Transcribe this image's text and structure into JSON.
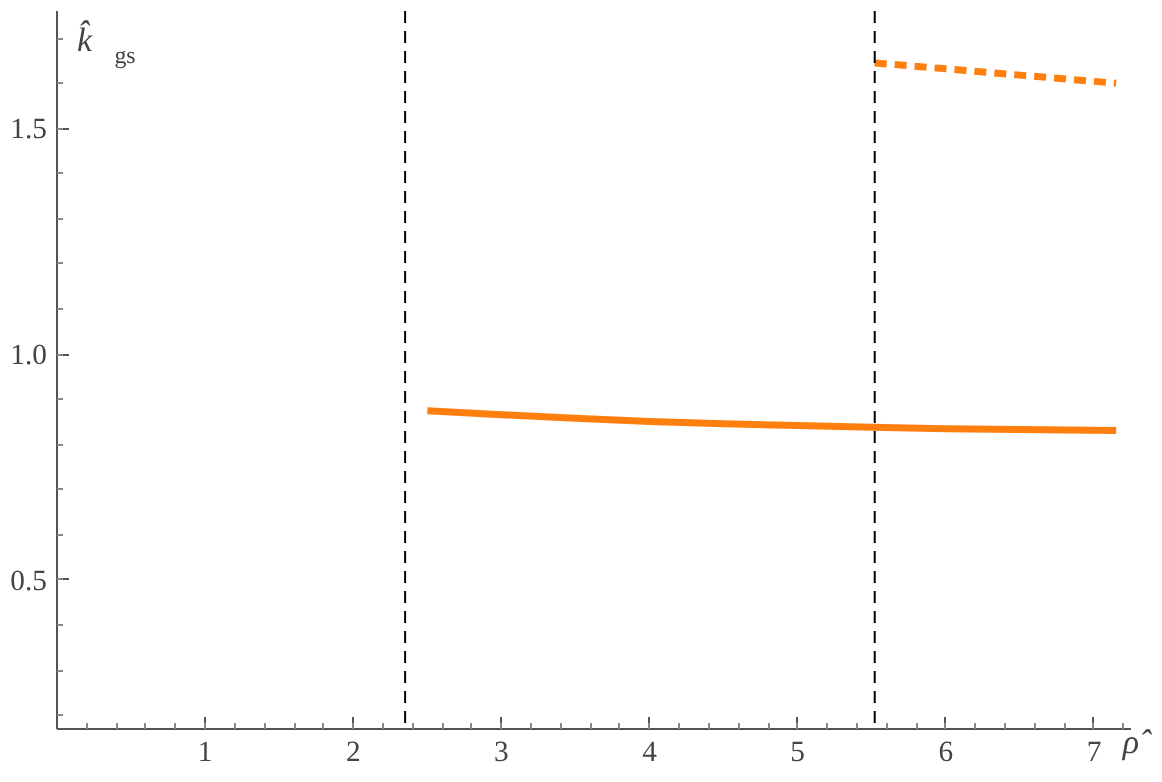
{
  "chart_data": {
    "type": "line",
    "xlabel": "ρ̂",
    "ylabel": "k̂$_{gs}$",
    "xlim": [
      0,
      7.25
    ],
    "ylim": [
      0.17,
      1.76
    ],
    "xticks": [
      1,
      2,
      3,
      4,
      5,
      6,
      7
    ],
    "yticks": [
      {
        "value": 0.5,
        "label": "0.5"
      },
      {
        "value": 1.0,
        "label": "1.0"
      },
      {
        "value": 1.5,
        "label": "1.5"
      }
    ],
    "grid": false,
    "series": [
      {
        "color": "#ff7f0e",
        "line_style": "solid",
        "x": [
          2.5,
          3.0,
          3.5,
          4.0,
          4.5,
          5.0,
          5.5,
          6.0,
          6.5,
          7.15
        ],
        "values": [
          0.875,
          0.866,
          0.858,
          0.851,
          0.846,
          0.842,
          0.838,
          0.835,
          0.833,
          0.831
        ]
      },
      {
        "color": "#ff7f0e",
        "line_style": "dashed",
        "x": [
          5.52,
          6.0,
          6.5,
          7.15
        ],
        "values": [
          1.645,
          1.632,
          1.618,
          1.6
        ]
      }
    ],
    "ref_lines": [
      {
        "axis": "x",
        "value": 2.35,
        "color": "#000000",
        "line_style": "dashed"
      },
      {
        "axis": "x",
        "value": 5.52,
        "color": "#000000",
        "line_style": "dashed"
      }
    ]
  }
}
